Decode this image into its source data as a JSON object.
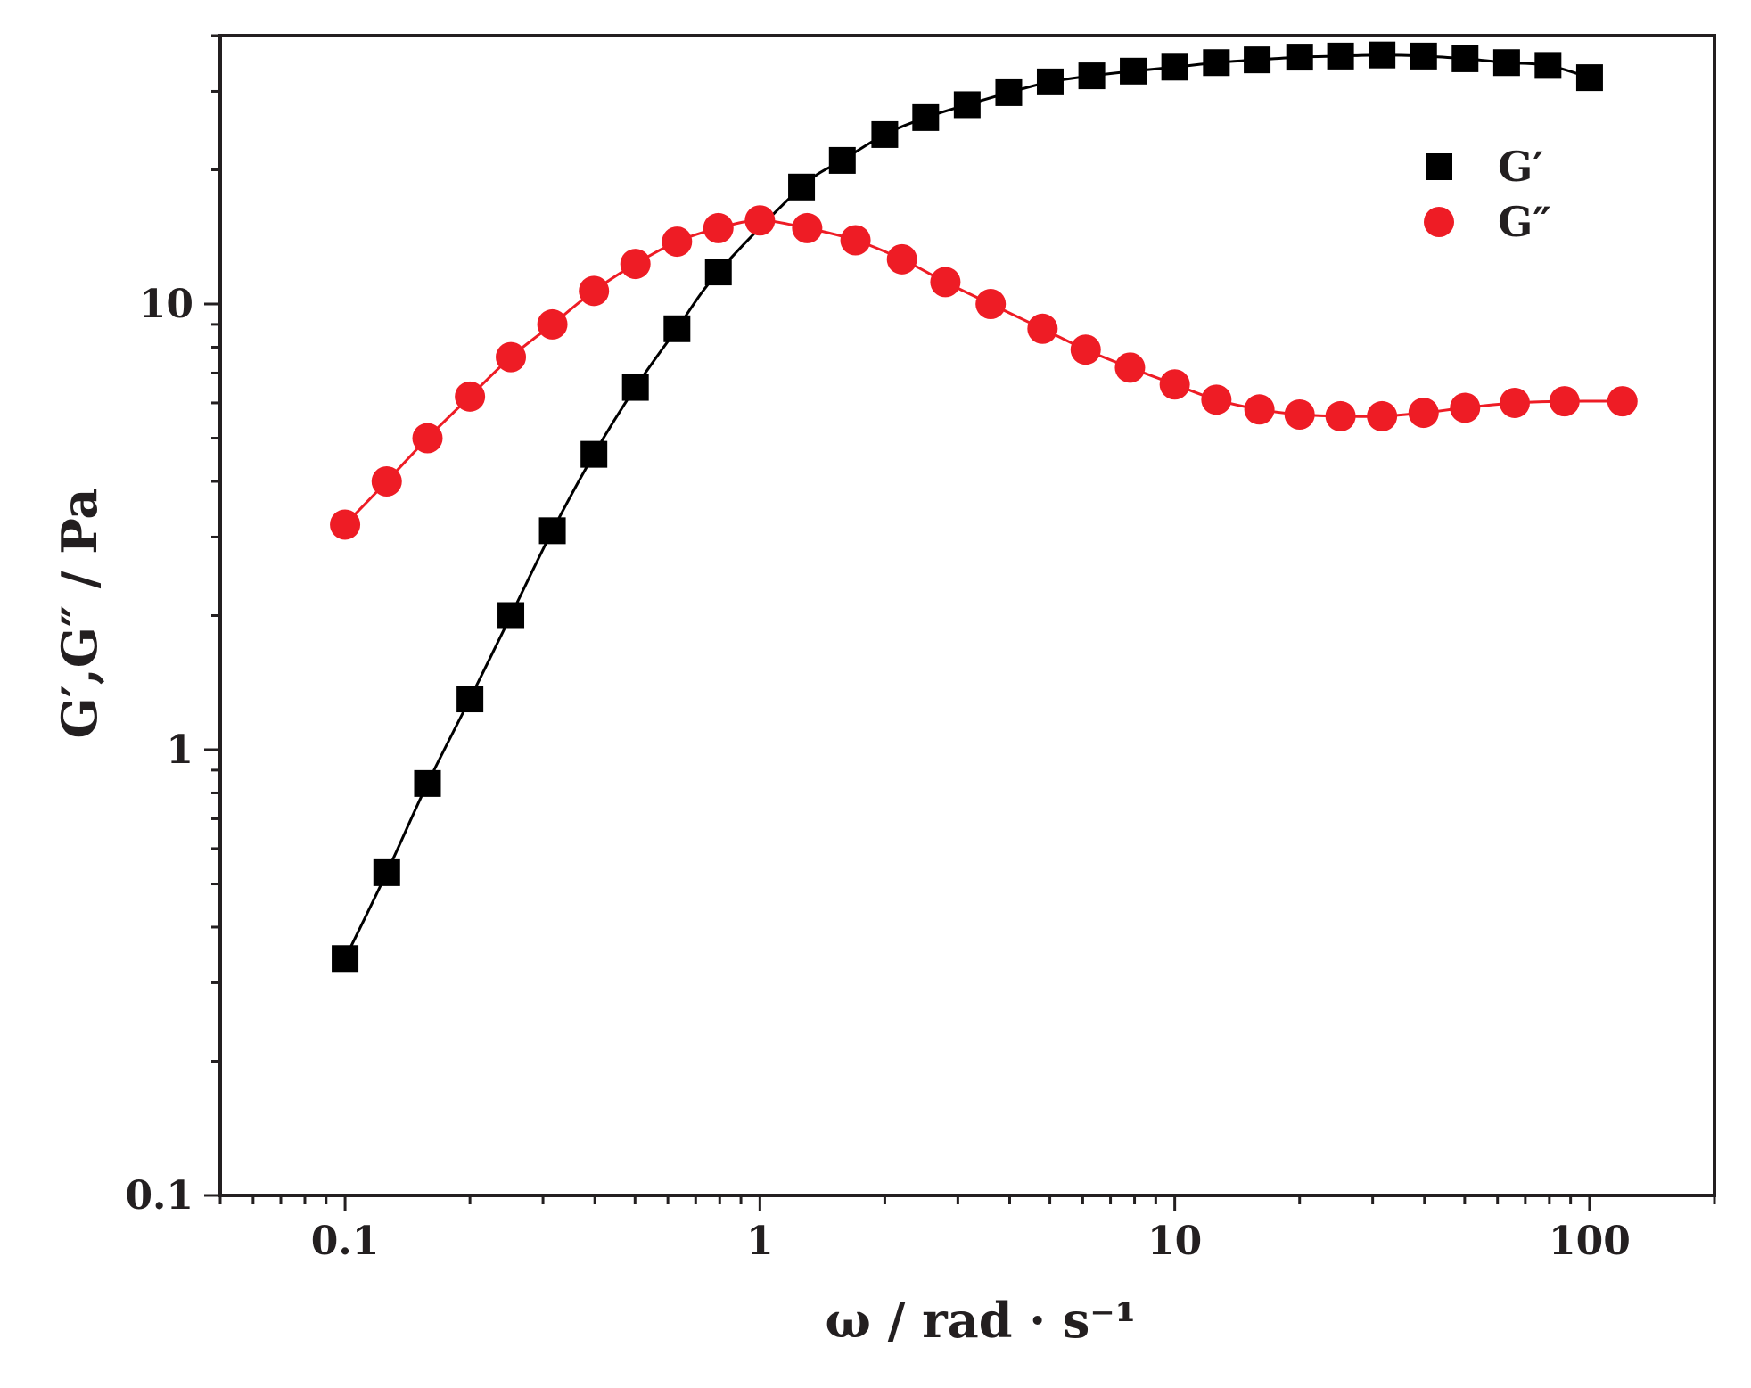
{
  "chart_data": {
    "type": "line",
    "title": "",
    "xlabel": "ω / rad · s⁻¹",
    "ylabel": "G′,G″ / Pa",
    "x_scale": "log",
    "y_scale": "log",
    "xlim": [
      0.05,
      200
    ],
    "ylim": [
      0.1,
      40
    ],
    "x_ticks": [
      0.1,
      1,
      10,
      100
    ],
    "x_tick_labels": [
      "0.1",
      "1",
      "10",
      "100"
    ],
    "y_ticks": [
      0.1,
      1,
      10
    ],
    "y_tick_labels": [
      "0.1",
      "1",
      "10"
    ],
    "grid": false,
    "legend_position": "top-right",
    "series": [
      {
        "name": "G′",
        "marker": "square",
        "color": "#000000",
        "x": [
          0.1,
          0.126,
          0.158,
          0.2,
          0.251,
          0.316,
          0.398,
          0.501,
          0.631,
          0.794,
          1.26,
          1.58,
          2.0,
          2.51,
          3.16,
          3.98,
          5.01,
          6.31,
          7.94,
          10.0,
          12.6,
          15.8,
          20.0,
          25.1,
          31.6,
          39.8,
          50.1,
          63.1,
          79.4,
          100.0
        ],
        "y": [
          0.34,
          0.53,
          0.84,
          1.3,
          2.0,
          3.1,
          4.6,
          6.5,
          8.8,
          11.8,
          18.3,
          21.0,
          24.0,
          26.2,
          28.0,
          29.8,
          31.5,
          32.5,
          33.3,
          34.0,
          34.8,
          35.3,
          35.8,
          36.0,
          36.2,
          36.0,
          35.5,
          34.8,
          34.3,
          32.2
        ]
      },
      {
        "name": "G″",
        "marker": "circle",
        "color": "#ee1c25",
        "x": [
          0.1,
          0.126,
          0.158,
          0.2,
          0.251,
          0.316,
          0.398,
          0.501,
          0.631,
          0.794,
          1.0,
          1.3,
          1.7,
          2.2,
          2.8,
          3.6,
          4.8,
          6.1,
          7.8,
          10.0,
          12.6,
          16.0,
          20.0,
          25.1,
          31.6,
          39.8,
          50.1,
          66.0,
          87.0,
          120.0
        ],
        "y": [
          3.2,
          4.0,
          5.0,
          6.2,
          7.6,
          9.0,
          10.7,
          12.3,
          13.8,
          14.8,
          15.4,
          14.8,
          13.9,
          12.6,
          11.2,
          10.0,
          8.8,
          7.9,
          7.2,
          6.6,
          6.1,
          5.8,
          5.65,
          5.6,
          5.6,
          5.7,
          5.85,
          6.0,
          6.05,
          6.05
        ]
      }
    ]
  }
}
